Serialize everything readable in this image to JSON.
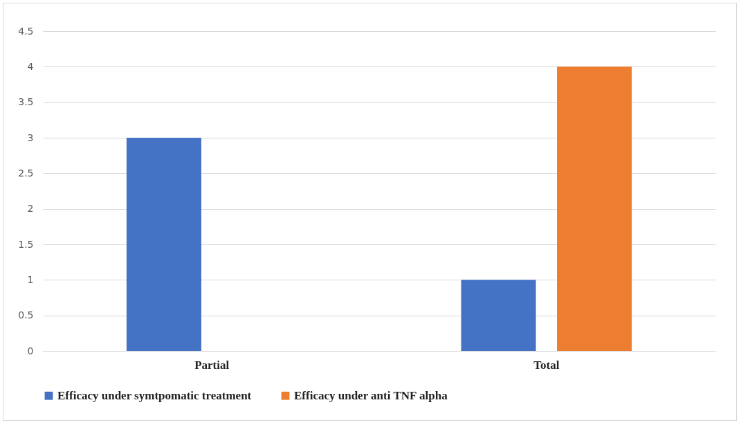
{
  "chart_data": {
    "type": "bar",
    "categories": [
      "Partial",
      "Total"
    ],
    "series": [
      {
        "name": "Efficacy under symtpomatic treatment",
        "color": "#4472c4",
        "values": [
          3,
          1
        ]
      },
      {
        "name": "Efficacy under anti TNF alpha",
        "color": "#ed7d31",
        "values": [
          0,
          4
        ]
      }
    ],
    "ylim": [
      0,
      4.5
    ],
    "yticks": [
      0,
      0.5,
      1,
      1.5,
      2,
      2.5,
      3,
      3.5,
      4,
      4.5
    ],
    "grid": "y",
    "legend": "bottom"
  }
}
